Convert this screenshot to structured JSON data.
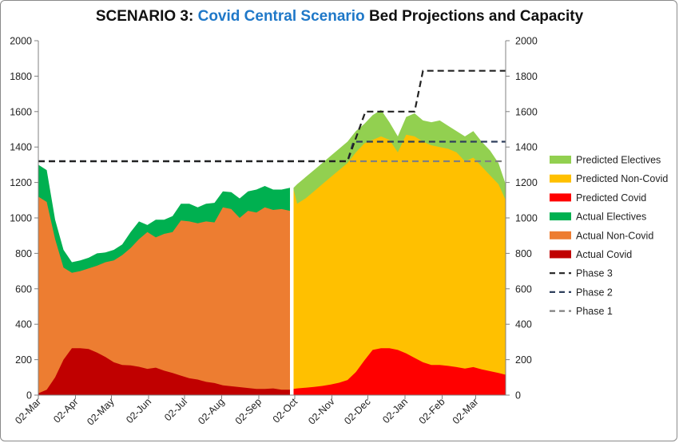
{
  "title": {
    "prefix": "SCENARIO 3: ",
    "highlight": "Covid Central Scenario",
    "suffix": " Bed Projections and Capacity"
  },
  "chart_data": {
    "type": "area",
    "title": "SCENARIO 3: Covid Central Scenario Bed Projections and Capacity",
    "ylim": [
      0,
      2000
    ],
    "y_ticks": [
      0,
      200,
      400,
      600,
      800,
      1000,
      1200,
      1400,
      1600,
      1800,
      2000
    ],
    "secondary_y_ticks": [
      0,
      200,
      400,
      600,
      800,
      1000,
      1200,
      1400,
      1600,
      1800,
      2000
    ],
    "x_ticks": [
      "02-Mar",
      "02-Apr",
      "02-May",
      "02-Jun",
      "02-Jul",
      "02-Aug",
      "02-Sep",
      "02-Oct",
      "02-Nov",
      "02-Dec",
      "02-Jan",
      "02-Feb",
      "02-Mar"
    ],
    "grid": false,
    "legend_position": "right",
    "x_start_date": "2020-03-02",
    "x_end_date": "2021-03-27",
    "colors": {
      "Predicted Electives": "#92d050",
      "Predicted Non-Covid": "#ffc000",
      "Predicted Covid": "#ff0000",
      "Actual Electives": "#00b050",
      "Actual Non-Covid": "#ed7d31",
      "Actual Covid": "#c00000",
      "Phase 3": "#222222",
      "Phase 2": "#2e3f5c",
      "Phase 1": "#808080"
    },
    "actual": {
      "dates": [
        "2020-03-02",
        "2020-03-09",
        "2020-03-16",
        "2020-03-23",
        "2020-03-30",
        "2020-04-06",
        "2020-04-13",
        "2020-04-20",
        "2020-04-27",
        "2020-05-04",
        "2020-05-11",
        "2020-05-18",
        "2020-05-25",
        "2020-06-01",
        "2020-06-08",
        "2020-06-15",
        "2020-06-22",
        "2020-06-29",
        "2020-07-06",
        "2020-07-13",
        "2020-07-20",
        "2020-07-27",
        "2020-08-03",
        "2020-08-10",
        "2020-08-17",
        "2020-08-24",
        "2020-08-31",
        "2020-09-07",
        "2020-09-14",
        "2020-09-21",
        "2020-09-28"
      ],
      "covid": [
        10,
        30,
        100,
        200,
        265,
        265,
        260,
        240,
        215,
        185,
        170,
        168,
        160,
        148,
        155,
        138,
        125,
        110,
        95,
        88,
        75,
        68,
        55,
        50,
        45,
        40,
        35,
        35,
        38,
        30,
        30
      ],
      "non_covid": [
        1120,
        1090,
        880,
        720,
        690,
        700,
        715,
        730,
        750,
        760,
        790,
        830,
        880,
        920,
        890,
        910,
        920,
        985,
        980,
        970,
        980,
        975,
        1060,
        1050,
        1000,
        1040,
        1030,
        1060,
        1045,
        1050,
        1040
      ],
      "electives": [
        1300,
        1270,
        990,
        820,
        750,
        760,
        775,
        800,
        805,
        820,
        850,
        920,
        980,
        960,
        990,
        990,
        1010,
        1080,
        1080,
        1060,
        1080,
        1085,
        1150,
        1145,
        1110,
        1150,
        1160,
        1180,
        1160,
        1160,
        1170
      ]
    },
    "predicted": {
      "dates": [
        "2020-10-01",
        "2020-10-04",
        "2020-10-11",
        "2020-10-18",
        "2020-10-25",
        "2020-11-01",
        "2020-11-08",
        "2020-11-15",
        "2020-11-22",
        "2020-11-29",
        "2020-12-06",
        "2020-12-13",
        "2020-12-20",
        "2020-12-27",
        "2021-01-03",
        "2021-01-10",
        "2021-01-17",
        "2021-01-24",
        "2021-01-31",
        "2021-02-07",
        "2021-02-14",
        "2021-02-21",
        "2021-02-28",
        "2021-03-07",
        "2021-03-14",
        "2021-03-21",
        "2021-03-27"
      ],
      "covid": [
        35,
        38,
        42,
        46,
        52,
        60,
        70,
        85,
        130,
        195,
        255,
        265,
        265,
        255,
        235,
        210,
        185,
        170,
        170,
        165,
        158,
        150,
        158,
        145,
        135,
        125,
        115
      ],
      "non_covid": [
        1160,
        1080,
        1110,
        1150,
        1190,
        1230,
        1270,
        1310,
        1370,
        1420,
        1440,
        1460,
        1440,
        1370,
        1470,
        1460,
        1430,
        1410,
        1400,
        1390,
        1370,
        1320,
        1340,
        1290,
        1240,
        1190,
        1100
      ],
      "electives": [
        1170,
        1190,
        1230,
        1270,
        1310,
        1350,
        1390,
        1430,
        1490,
        1530,
        1580,
        1610,
        1540,
        1460,
        1570,
        1590,
        1550,
        1540,
        1550,
        1520,
        1490,
        1460,
        1490,
        1430,
        1380,
        1310,
        1190
      ]
    },
    "capacity_lines": [
      {
        "name": "Phase 3",
        "points": [
          [
            "2020-03-02",
            1320
          ],
          [
            "2020-11-15",
            1320
          ],
          [
            "2020-11-30",
            1600
          ],
          [
            "2021-01-10",
            1600
          ],
          [
            "2021-01-17",
            1830
          ],
          [
            "2021-03-27",
            1830
          ]
        ]
      },
      {
        "name": "Phase 2",
        "points": [
          [
            "2020-03-02",
            1320
          ],
          [
            "2020-11-15",
            1320
          ],
          [
            "2020-11-20",
            1430
          ],
          [
            "2021-03-27",
            1430
          ]
        ]
      },
      {
        "name": "Phase 1",
        "points": [
          [
            "2020-03-02",
            1320
          ],
          [
            "2021-03-27",
            1320
          ]
        ]
      }
    ],
    "legend": [
      "Predicted Electives",
      "Predicted Non-Covid",
      "Predicted Covid",
      "Actual Electives",
      "Actual Non-Covid",
      "Actual Covid",
      "Phase 3",
      "Phase 2",
      "Phase 1"
    ]
  }
}
